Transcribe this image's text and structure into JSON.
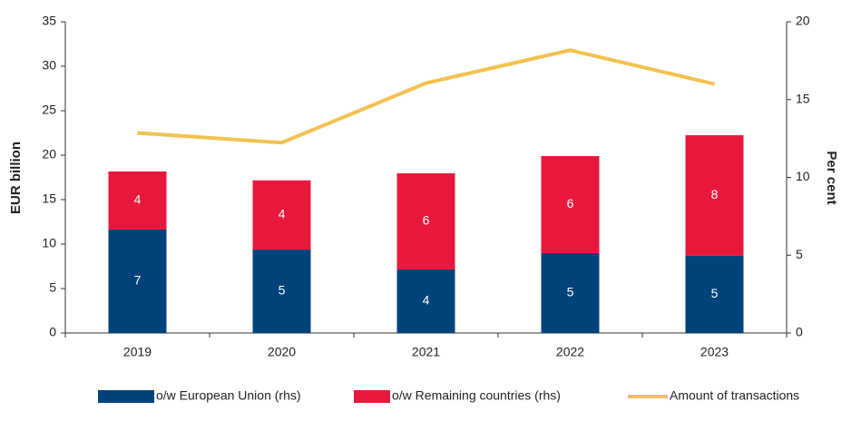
{
  "chart_data": {
    "type": "bar",
    "stacked": true,
    "y_label": "EUR billion",
    "y2_label": "Per cent",
    "categories": [
      "2019",
      "2020",
      "2021",
      "2022",
      "2023"
    ],
    "ylim": [
      0,
      35
    ],
    "yticks": [
      0,
      5,
      10,
      15,
      20,
      25,
      30,
      35
    ],
    "y2lim": [
      0,
      20
    ],
    "y2ticks": [
      0,
      5,
      10,
      15,
      20
    ],
    "series": [
      {
        "name": "o/w European Union (rhs)",
        "color": "#00437a",
        "axis": "y2",
        "values": [
          6.65,
          5.36,
          4.08,
          5.13,
          4.96
        ],
        "value_labels": [
          "7",
          "5",
          "4",
          "5",
          "5"
        ]
      },
      {
        "name": "o/w Remaining countries (rhs)",
        "color": "#e8183d",
        "axis": "y2",
        "values": [
          3.73,
          4.45,
          6.18,
          6.24,
          7.75
        ],
        "value_labels": [
          "4",
          "4",
          "6",
          "6",
          "8"
        ]
      },
      {
        "name": "Amount of transactions",
        "type": "line",
        "color": "#f2c14e",
        "values": [
          22.5,
          21.4,
          28.1,
          31.8,
          28.0
        ]
      }
    ]
  }
}
